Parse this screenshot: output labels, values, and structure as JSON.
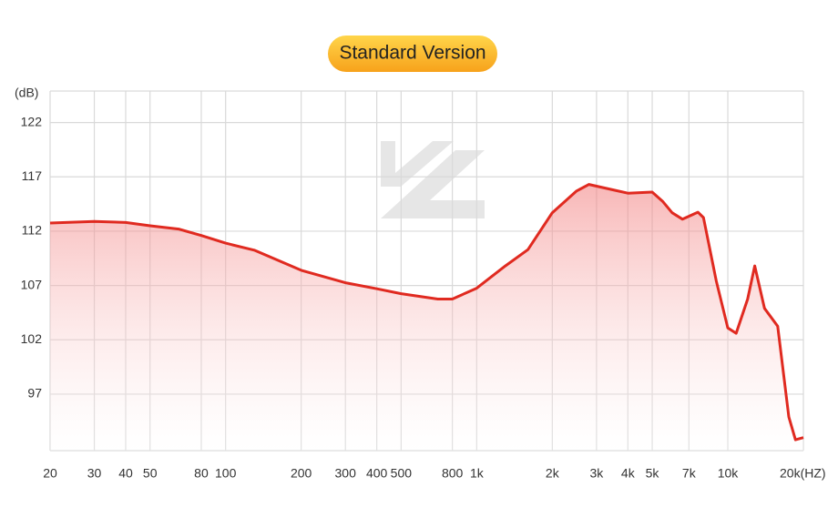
{
  "chart_data": {
    "type": "line",
    "title": "Standard Version",
    "y_label": "(dB)",
    "log_x": true,
    "grid": true,
    "xlim": [
      20,
      20000
    ],
    "ylim": [
      91.8,
      124.9
    ],
    "xticks": [
      20,
      30,
      40,
      50,
      80,
      100,
      200,
      300,
      400,
      500,
      800,
      {
        "value": 1000,
        "label": "1k"
      },
      {
        "value": 2000,
        "label": "2k"
      },
      {
        "value": 3000,
        "label": "3k"
      },
      {
        "value": 4000,
        "label": "4k"
      },
      {
        "value": 5000,
        "label": "5k"
      },
      {
        "value": 7000,
        "label": "7k"
      },
      {
        "value": 10000,
        "label": "10k"
      },
      {
        "value": 20000,
        "label": "20k(HZ)"
      }
    ],
    "yticks": [
      97,
      102,
      107,
      112,
      117,
      122
    ],
    "series": [
      {
        "color": "#e02a20",
        "x": [
          20,
          30,
          40,
          50,
          65,
          80,
          100,
          130,
          200,
          300,
          400,
          500,
          700,
          800,
          1000,
          1300,
          1600,
          2000,
          2500,
          2800,
          3500,
          4000,
          5000,
          5500,
          6000,
          6600,
          7600,
          8000,
          9000,
          10000,
          10800,
          12000,
          12800,
          14000,
          15800,
          17500,
          18600,
          20000
        ],
        "values": [
          112.75,
          112.9,
          112.8,
          112.5,
          112.2,
          111.6,
          110.9,
          110.25,
          108.4,
          107.25,
          106.7,
          106.25,
          105.75,
          105.75,
          106.75,
          108.8,
          110.3,
          113.7,
          115.7,
          116.3,
          115.8,
          115.5,
          115.6,
          114.75,
          113.7,
          113.1,
          113.75,
          113.25,
          107.4,
          103.1,
          102.6,
          105.75,
          108.8,
          104.9,
          103.25,
          94.9,
          92.8,
          93.0
        ]
      }
    ]
  }
}
